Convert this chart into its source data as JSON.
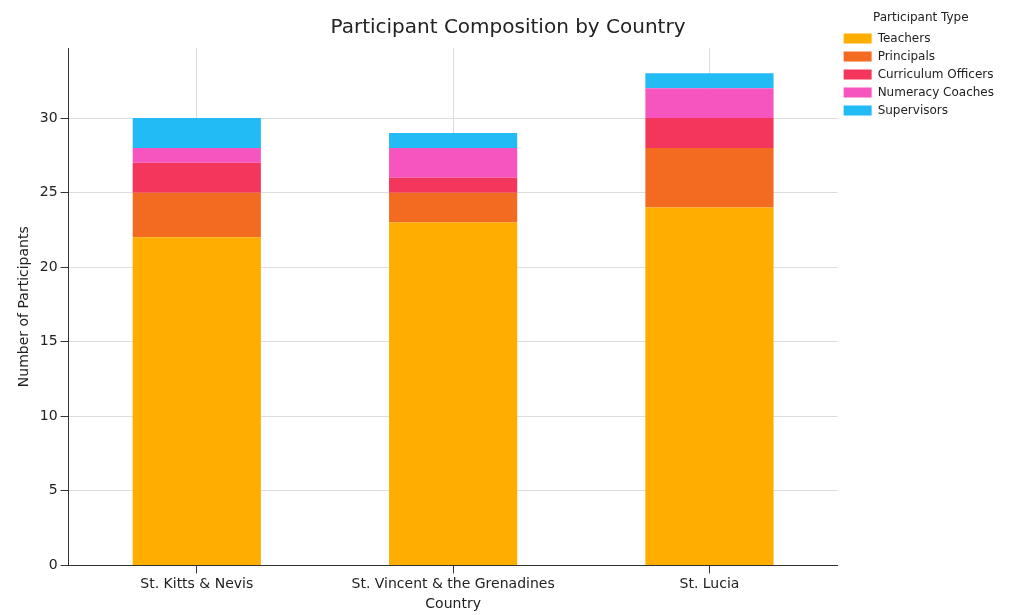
{
  "chart_data": {
    "type": "bar",
    "title": "Participant Composition by Country",
    "xlabel": "Country",
    "ylabel": "Number of Participants",
    "legend_title": "Participant Type",
    "categories": [
      "St. Kitts & Nevis",
      "St. Vincent & the Grenadines",
      "St. Lucia"
    ],
    "stacked": true,
    "ylim": [
      0,
      34.7
    ],
    "yticks": [
      0,
      5,
      10,
      15,
      20,
      25,
      30
    ],
    "grid": true,
    "legend": "top right",
    "series": [
      {
        "name": "Teachers",
        "color": "#ffae00",
        "values": [
          22,
          23,
          24
        ]
      },
      {
        "name": "Principals",
        "color": "#f26b21",
        "values": [
          3,
          2,
          4
        ]
      },
      {
        "name": "Curriculum Officers",
        "color": "#f5365c",
        "values": [
          2,
          1,
          2
        ]
      },
      {
        "name": "Numeracy Coaches",
        "color": "#f655c0",
        "values": [
          1,
          2,
          2
        ]
      },
      {
        "name": "Supervisors",
        "color": "#22bbf5",
        "values": [
          2,
          1,
          1
        ]
      }
    ]
  }
}
